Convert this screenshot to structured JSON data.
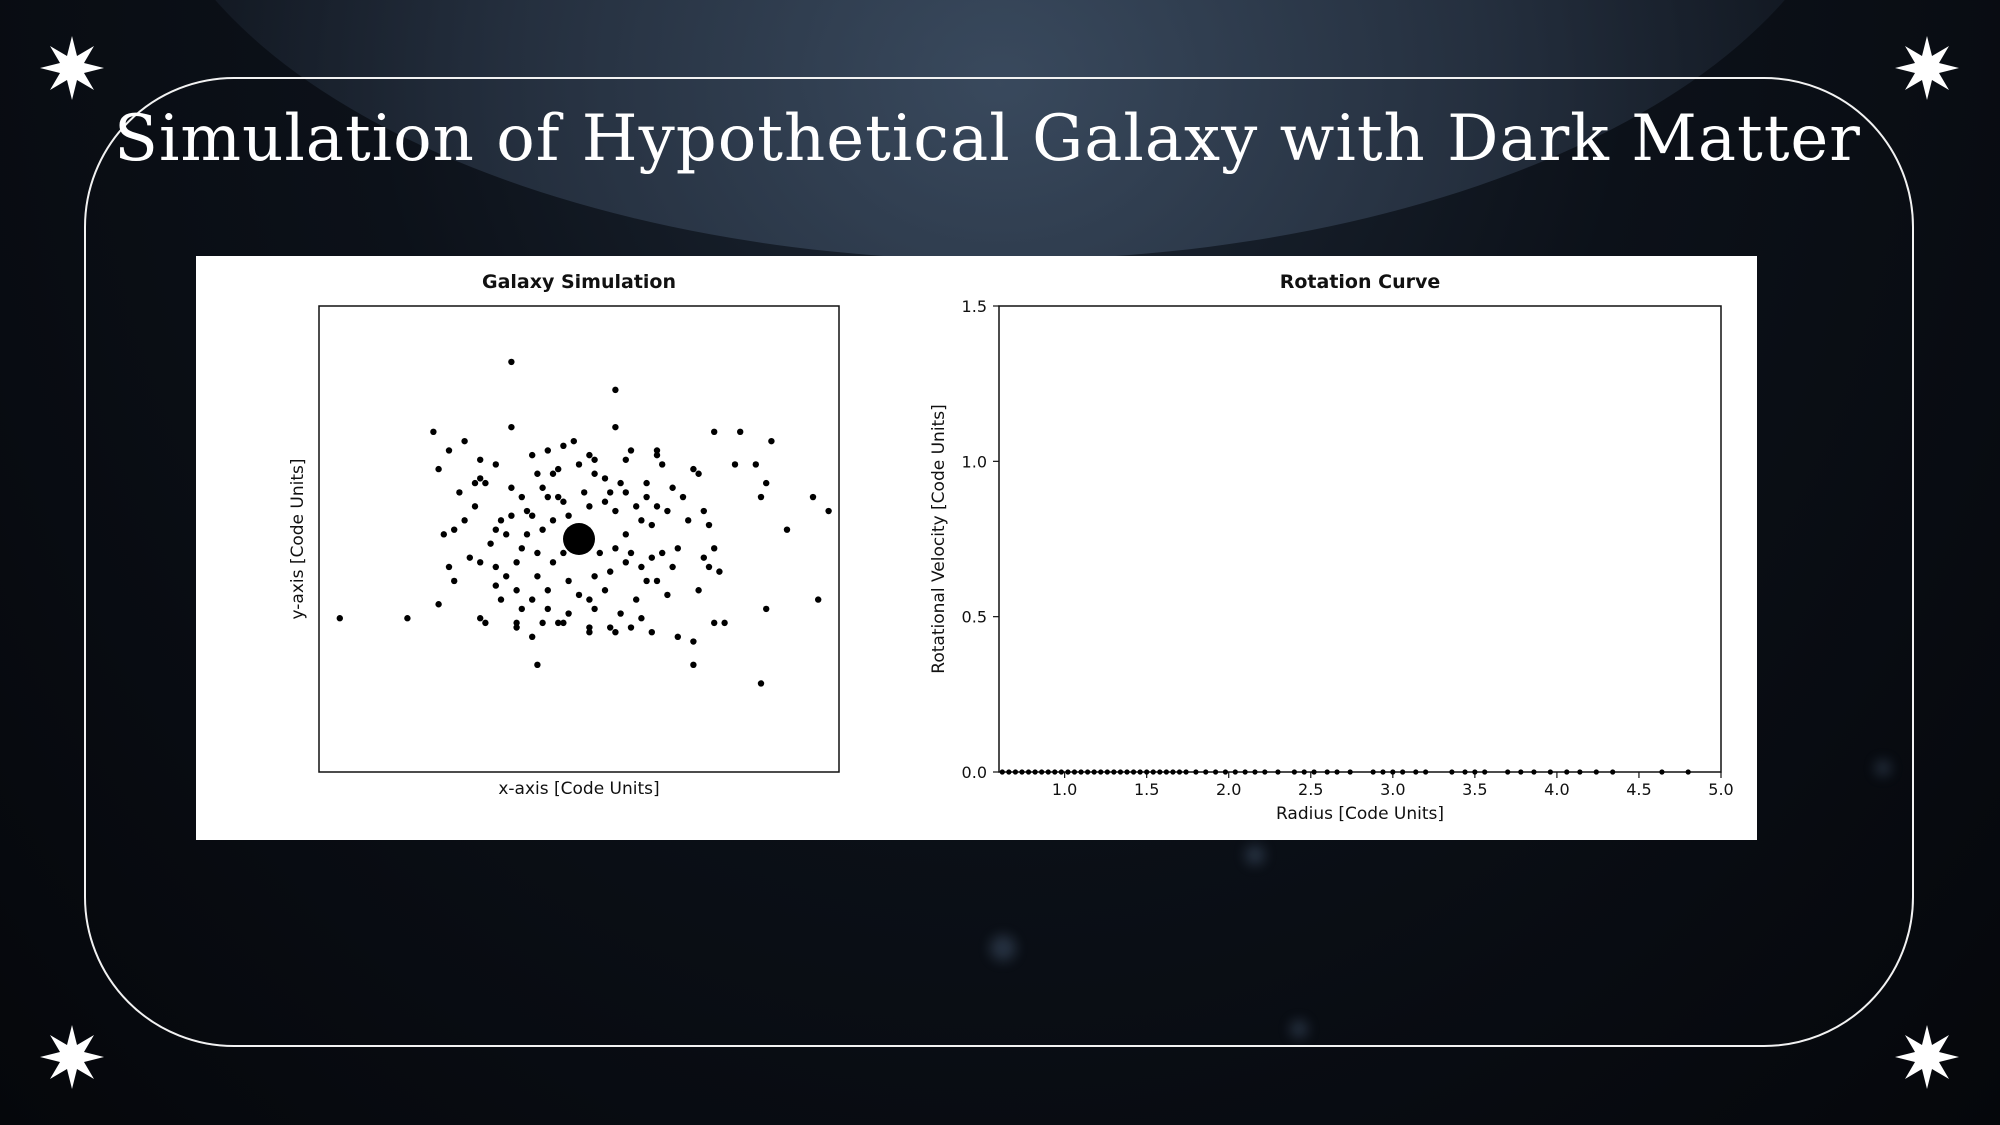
{
  "slide": {
    "title": "Simulation of Hypothetical Galaxy with Dark Matter"
  },
  "colors": {
    "frame": "#f2f2f2",
    "title": "#ffffff",
    "figure_background": "#ffffff",
    "marker": "#000000"
  },
  "icons": [
    "sparkle-star-icon"
  ],
  "chart_data": [
    {
      "type": "scatter",
      "title": "Galaxy Simulation",
      "xlabel": "x-axis [Code Units]",
      "ylabel": "y-axis [Code Units]",
      "ticks_visible": false,
      "xlim": [
        -5,
        5
      ],
      "ylim": [
        -5,
        5
      ],
      "central_mass": {
        "x": 0,
        "y": 0
      },
      "points": [
        [
          -1.3,
          3.8
        ],
        [
          0.7,
          3.2
        ],
        [
          -2.8,
          2.3
        ],
        [
          -2.2,
          2.1
        ],
        [
          -1.3,
          2.4
        ],
        [
          0.7,
          2.4
        ],
        [
          2.6,
          2.3
        ],
        [
          3.1,
          2.3
        ],
        [
          3.7,
          2.1
        ],
        [
          -2.5,
          1.9
        ],
        [
          -1.9,
          1.7
        ],
        [
          -1.6,
          1.6
        ],
        [
          -0.9,
          1.8
        ],
        [
          -0.3,
          2.0
        ],
        [
          0.2,
          1.8
        ],
        [
          0.9,
          1.7
        ],
        [
          1.5,
          1.8
        ],
        [
          1.6,
          1.6
        ],
        [
          3.4,
          1.6
        ],
        [
          -2.7,
          1.5
        ],
        [
          -0.4,
          1.5
        ],
        [
          0.3,
          1.4
        ],
        [
          2.2,
          1.5
        ],
        [
          2.3,
          1.4
        ],
        [
          -1.9,
          1.3
        ],
        [
          -2.0,
          1.2
        ],
        [
          -1.8,
          1.2
        ],
        [
          -0.8,
          1.4
        ],
        [
          -0.5,
          1.4
        ],
        [
          0.5,
          1.3
        ],
        [
          0.8,
          1.2
        ],
        [
          1.3,
          1.2
        ],
        [
          3.6,
          1.2
        ],
        [
          -1.3,
          1.1
        ],
        [
          0.1,
          1.0
        ],
        [
          0.6,
          1.0
        ],
        [
          0.9,
          1.0
        ],
        [
          1.3,
          0.9
        ],
        [
          4.5,
          0.9
        ],
        [
          -2.0,
          0.7
        ],
        [
          -1.1,
          0.9
        ],
        [
          -0.6,
          0.9
        ],
        [
          -0.4,
          0.9
        ],
        [
          1.1,
          0.7
        ],
        [
          1.5,
          0.7
        ],
        [
          3.5,
          0.9
        ],
        [
          -0.3,
          0.8
        ],
        [
          0.2,
          0.7
        ],
        [
          0.5,
          0.8
        ],
        [
          0.7,
          0.6
        ],
        [
          1.7,
          0.6
        ],
        [
          2.1,
          0.4
        ],
        [
          -1.0,
          0.6
        ],
        [
          -0.9,
          0.5
        ],
        [
          -0.5,
          0.4
        ],
        [
          1.2,
          0.4
        ],
        [
          2.5,
          0.3
        ],
        [
          4.0,
          0.2
        ],
        [
          -2.6,
          0.1
        ],
        [
          -2.4,
          0.2
        ],
        [
          -1.6,
          0.2
        ],
        [
          -1.4,
          0.1
        ],
        [
          -1.0,
          0.1
        ],
        [
          -0.7,
          0.2
        ],
        [
          0.9,
          0.1
        ],
        [
          1.4,
          0.3
        ],
        [
          -1.7,
          -0.1
        ],
        [
          -1.1,
          -0.2
        ],
        [
          -0.8,
          -0.3
        ],
        [
          0.4,
          -0.3
        ],
        [
          0.7,
          -0.2
        ],
        [
          1.0,
          -0.3
        ],
        [
          1.4,
          -0.4
        ],
        [
          1.6,
          -0.3
        ],
        [
          2.4,
          -0.4
        ],
        [
          -1.9,
          -0.5
        ],
        [
          -1.2,
          -0.5
        ],
        [
          -0.5,
          -0.5
        ],
        [
          0.9,
          -0.5
        ],
        [
          1.2,
          -0.6
        ],
        [
          2.5,
          -0.6
        ],
        [
          -1.4,
          -0.8
        ],
        [
          -0.8,
          -0.8
        ],
        [
          -0.2,
          -0.9
        ],
        [
          0.3,
          -0.8
        ],
        [
          1.5,
          -0.9
        ],
        [
          -1.6,
          -1.0
        ],
        [
          -1.2,
          -1.1
        ],
        [
          -0.6,
          -1.1
        ],
        [
          0.0,
          -1.2
        ],
        [
          0.5,
          -1.1
        ],
        [
          1.7,
          -1.2
        ],
        [
          2.3,
          -1.1
        ],
        [
          -1.5,
          -1.3
        ],
        [
          -0.9,
          -1.3
        ],
        [
          0.2,
          -1.3
        ],
        [
          1.1,
          -1.3
        ],
        [
          4.6,
          -1.3
        ],
        [
          -1.1,
          -1.5
        ],
        [
          -0.6,
          -1.5
        ],
        [
          0.3,
          -1.5
        ],
        [
          0.8,
          -1.6
        ],
        [
          1.2,
          -1.7
        ],
        [
          3.6,
          -1.5
        ],
        [
          -1.2,
          -1.8
        ],
        [
          -0.7,
          -1.8
        ],
        [
          -0.3,
          -1.8
        ],
        [
          2.6,
          -1.8
        ],
        [
          -3.3,
          -1.7
        ],
        [
          -1.9,
          -1.7
        ],
        [
          -1.2,
          -1.9
        ],
        [
          -0.4,
          -1.8
        ],
        [
          0.2,
          -1.9
        ],
        [
          0.6,
          -1.9
        ],
        [
          1.0,
          -1.9
        ],
        [
          2.8,
          -1.8
        ],
        [
          -4.6,
          -1.7
        ],
        [
          -1.8,
          -1.8
        ],
        [
          0.2,
          -2.0
        ],
        [
          0.7,
          -2.0
        ],
        [
          1.4,
          -2.0
        ],
        [
          1.9,
          -2.1
        ],
        [
          2.2,
          -2.2
        ],
        [
          -0.8,
          -2.7
        ],
        [
          3.5,
          -3.1
        ],
        [
          2.2,
          -2.7
        ],
        [
          -2.7,
          -1.4
        ],
        [
          -2.5,
          -0.6
        ],
        [
          -2.1,
          -0.4
        ],
        [
          -2.4,
          -0.9
        ],
        [
          -1.6,
          -0.6
        ],
        [
          1.9,
          -0.2
        ],
        [
          2.7,
          -0.7
        ],
        [
          -0.2,
          -1.6
        ],
        [
          1.5,
          1.9
        ],
        [
          0.3,
          1.7
        ],
        [
          -0.1,
          2.1
        ],
        [
          -0.6,
          1.9
        ],
        [
          2.0,
          0.9
        ],
        [
          -1.5,
          0.4
        ],
        [
          -0.3,
          -0.3
        ],
        [
          0.6,
          -0.7
        ],
        [
          1.8,
          1.1
        ],
        [
          2.4,
          0.6
        ],
        [
          1.8,
          -0.6
        ],
        [
          -0.9,
          -2.1
        ],
        [
          2.6,
          -0.2
        ],
        [
          -2.2,
          0.4
        ],
        [
          4.8,
          0.6
        ],
        [
          -2.3,
          1.0
        ],
        [
          3.0,
          1.6
        ],
        [
          -0.2,
          0.5
        ],
        [
          0.0,
          1.6
        ],
        [
          1.0,
          1.9
        ],
        [
          -1.3,
          0.5
        ],
        [
          -0.7,
          1.1
        ],
        [
          1.3,
          -0.9
        ]
      ]
    },
    {
      "type": "scatter",
      "title": "Rotation Curve",
      "xlabel": "Radius [Code Units]",
      "ylabel": "Rotational Velocity [Code Units]",
      "xlim": [
        0.6,
        5.0
      ],
      "ylim": [
        0.0,
        1.5
      ],
      "xticks": [
        "1.0",
        "1.5",
        "2.0",
        "2.5",
        "3.0",
        "3.5",
        "4.0",
        "4.5",
        "5.0"
      ],
      "yticks": [
        "0.0",
        "0.5",
        "1.0",
        "1.5"
      ],
      "x": [
        0.62,
        0.66,
        0.7,
        0.74,
        0.78,
        0.82,
        0.86,
        0.9,
        0.94,
        0.98,
        1.02,
        1.06,
        1.1,
        1.14,
        1.18,
        1.22,
        1.26,
        1.3,
        1.34,
        1.38,
        1.42,
        1.46,
        1.5,
        1.54,
        1.58,
        1.62,
        1.66,
        1.7,
        1.74,
        1.8,
        1.86,
        1.92,
        1.98,
        2.04,
        2.1,
        2.16,
        2.22,
        2.3,
        2.4,
        2.46,
        2.52,
        2.6,
        2.66,
        2.74,
        2.88,
        2.94,
        3.0,
        3.06,
        3.14,
        3.2,
        3.36,
        3.44,
        3.5,
        3.56,
        3.7,
        3.78,
        3.86,
        3.96,
        4.06,
        4.14,
        4.24,
        4.34,
        4.64,
        4.8
      ],
      "y": [
        0,
        0,
        0,
        0,
        0,
        0,
        0,
        0,
        0,
        0,
        0,
        0,
        0,
        0,
        0,
        0,
        0,
        0,
        0,
        0,
        0,
        0,
        0,
        0,
        0,
        0,
        0,
        0,
        0,
        0,
        0,
        0,
        0,
        0,
        0,
        0,
        0,
        0,
        0,
        0,
        0,
        0,
        0,
        0,
        0,
        0,
        0,
        0,
        0,
        0,
        0,
        0,
        0,
        0,
        0,
        0,
        0,
        0,
        0,
        0,
        0,
        0,
        0,
        0
      ]
    }
  ]
}
